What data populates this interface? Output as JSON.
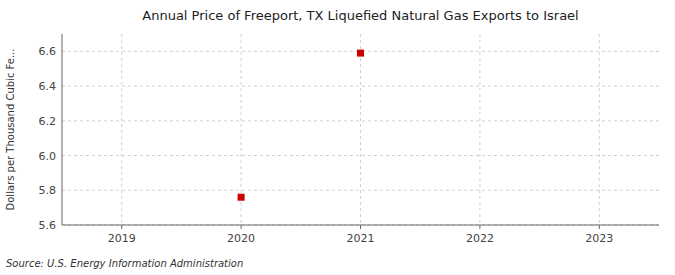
{
  "chart_data": {
    "type": "scatter",
    "title": "Annual Price of Freeport, TX Liquefied Natural Gas Exports to Israel",
    "ylabel": "Dollars per Thousand Cubic Fe...",
    "source": "Source: U.S. Energy Information Administration",
    "x": [
      2020,
      2021
    ],
    "values": [
      5.76,
      6.59
    ],
    "color": "#cc0000",
    "marker": "square",
    "xlim": [
      2018.5,
      2023.5
    ],
    "ylim": [
      5.6,
      6.7
    ],
    "xticks": [
      2019,
      2020,
      2021,
      2022,
      2023
    ],
    "yticks": [
      5.6,
      5.8,
      {
        "value": 6.0,
        "label": "6.0"
      },
      6.2,
      6.4,
      6.6
    ],
    "grid": true
  }
}
